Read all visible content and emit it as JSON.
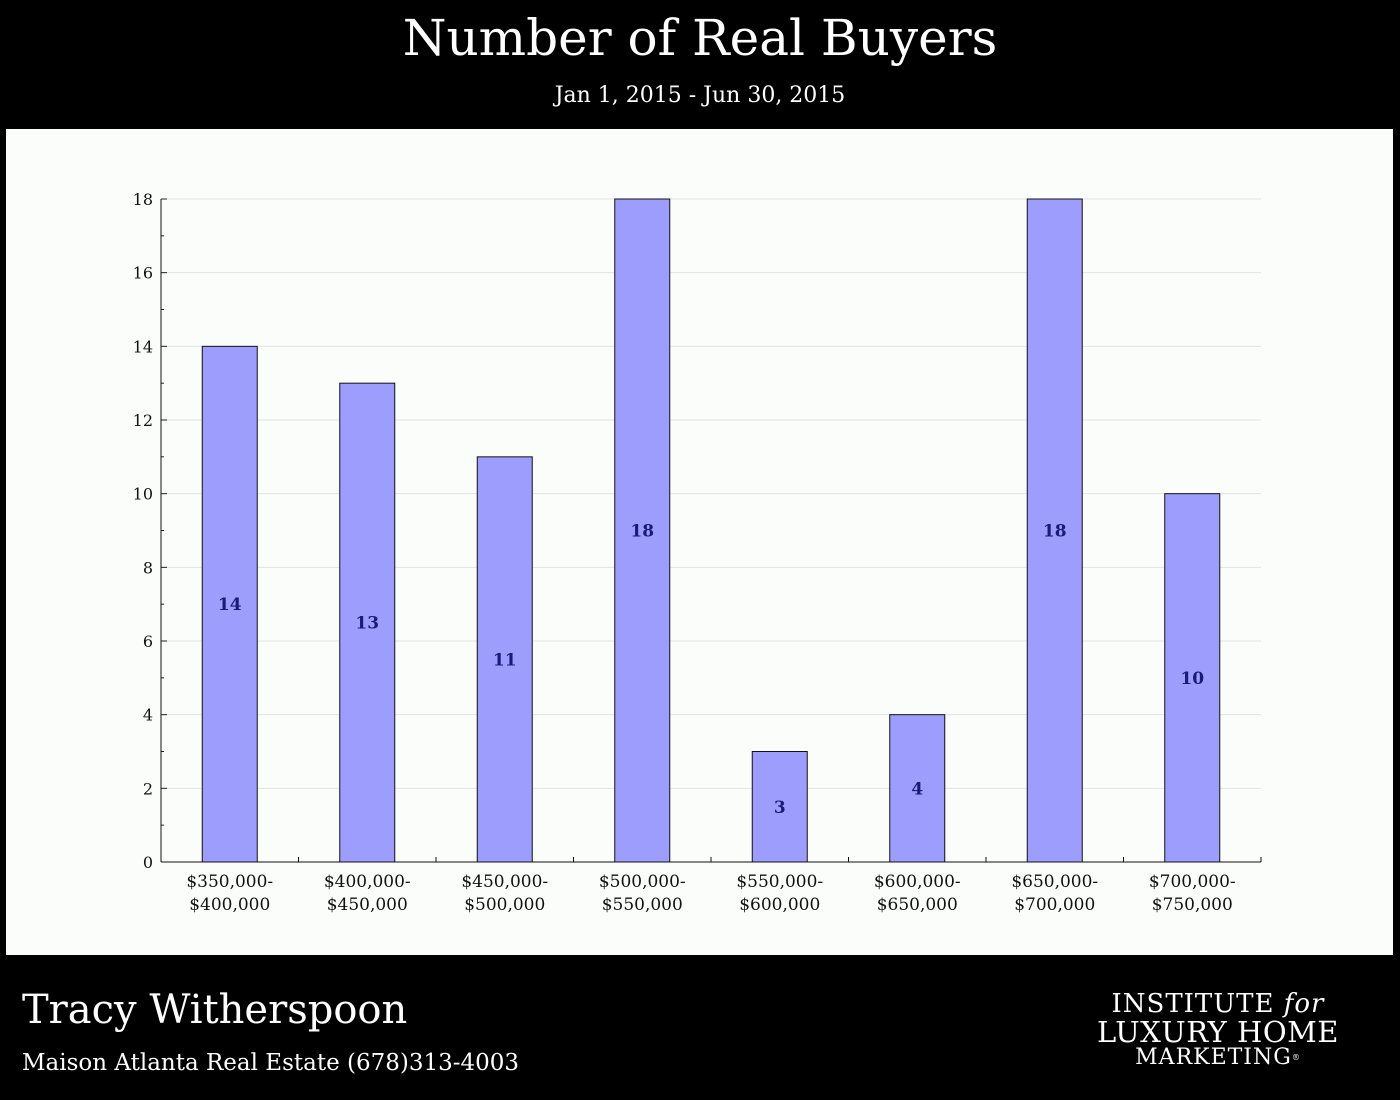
{
  "header": {
    "title": "Number of Real Buyers",
    "subtitle": "Jan 1, 2015 - Jun 30, 2015"
  },
  "footer": {
    "agent_name": "Tracy Witherspoon",
    "company_line": "Maison Atlanta Real Estate (678)313-4003"
  },
  "logo": {
    "line1_a": "INSTITUTE",
    "line1_b": "for",
    "line2": "LUXURY HOME",
    "line3": "MARKETING",
    "registered": "®"
  },
  "colors": {
    "bar_fill": "#9d9dfd",
    "bar_stroke": "#111111",
    "label_color": "#1a1a7a",
    "grid": "#e2e2e2",
    "panel_bg": "#fbfdfb"
  },
  "chart_data": {
    "type": "bar",
    "categories": [
      [
        "$350,000-",
        "$400,000"
      ],
      [
        "$400,000-",
        "$450,000"
      ],
      [
        "$450,000-",
        "$500,000"
      ],
      [
        "$500,000-",
        "$550,000"
      ],
      [
        "$550,000-",
        "$600,000"
      ],
      [
        "$600,000-",
        "$650,000"
      ],
      [
        "$650,000-",
        "$700,000"
      ],
      [
        "$700,000-",
        "$750,000"
      ]
    ],
    "values": [
      14,
      13,
      11,
      18,
      3,
      4,
      18,
      10
    ],
    "data_labels": [
      "14",
      "13",
      "11",
      "18",
      "3",
      "4",
      "18",
      "10"
    ],
    "title": "Number of Real Buyers",
    "subtitle": "Jan 1, 2015 - Jun 30, 2015",
    "ylim": [
      0,
      18
    ],
    "yticks": [
      0,
      2,
      4,
      6,
      8,
      10,
      12,
      14,
      16,
      18
    ],
    "ytick_labels": [
      "0",
      "2",
      "4",
      "6",
      "8",
      "10",
      "12",
      "14",
      "16",
      "18"
    ],
    "grid": true,
    "legend": "none"
  }
}
